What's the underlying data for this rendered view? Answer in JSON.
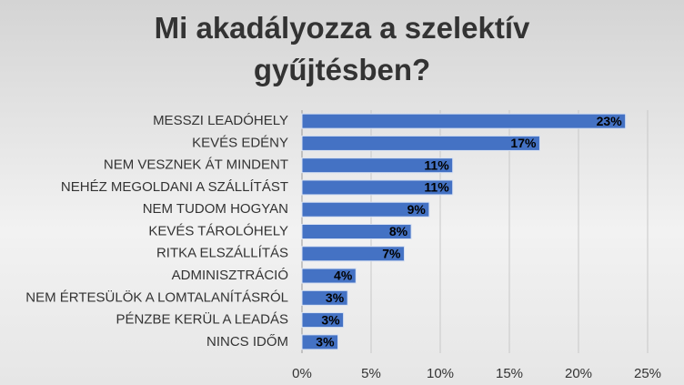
{
  "chart_data": {
    "type": "barh",
    "title": "Mi akadályozza a szelektív gyűjtésben?",
    "categories": [
      "MESSZI LEADÓHELY",
      "KEVÉS EDÉNY",
      "NEM VESZNEK ÁT MINDENT",
      "NEHÉZ MEGOLDANI A SZÁLLÍTÁST",
      "NEM TUDOM HOGYAN",
      "KEVÉS TÁROLÓHELY",
      "RITKA ELSZÁLLÍTÁS",
      "ADMINISZTRÁCIÓ",
      "NEM ÉRTESÜLÖK A LOMTALANÍTÁSRÓL",
      "PÉNZBE KERÜL A LEADÁS",
      "NINCS IDŐM"
    ],
    "values": [
      23.4,
      17.2,
      10.9,
      10.9,
      9.2,
      7.9,
      7.4,
      3.9,
      3.3,
      3.0,
      2.6
    ],
    "value_labels": [
      "23%",
      "17%",
      "11%",
      "11%",
      "9%",
      "8%",
      "7%",
      "4%",
      "3%",
      "3%",
      "3%"
    ],
    "color": "#4472c4",
    "xlim": [
      0,
      25
    ],
    "xticks": [
      {
        "value": 0,
        "label": "0%"
      },
      {
        "value": 5,
        "label": "5%"
      },
      {
        "value": 10,
        "label": "10%"
      },
      {
        "value": 15,
        "label": "15%"
      },
      {
        "value": 20,
        "label": "20%"
      },
      {
        "value": 25,
        "label": "25%"
      }
    ],
    "grid": true
  }
}
